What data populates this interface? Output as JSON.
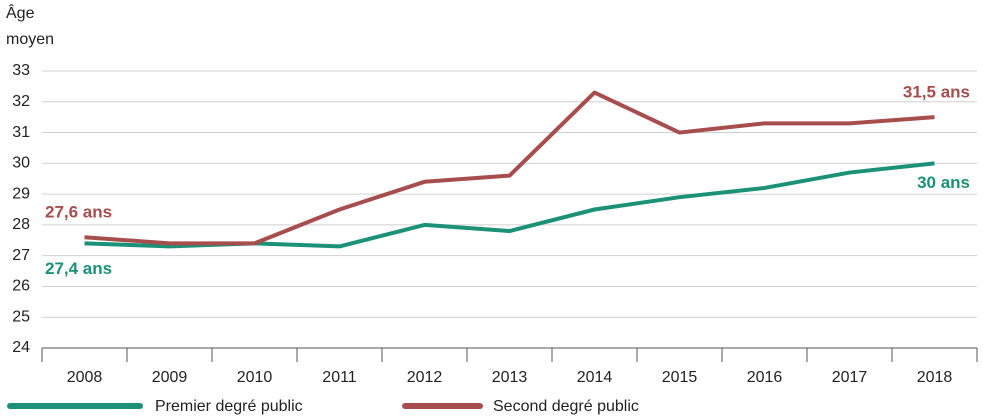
{
  "chart_data": {
    "type": "line",
    "y_label": [
      "Âge",
      "moyen"
    ],
    "categories": [
      "2008",
      "2009",
      "2010",
      "2011",
      "2012",
      "2013",
      "2014",
      "2015",
      "2016",
      "2017",
      "2018"
    ],
    "series": [
      {
        "name": "Premier degré public",
        "color": "#1b9178",
        "values": [
          27.4,
          27.3,
          27.4,
          27.3,
          28.0,
          27.8,
          28.5,
          28.9,
          29.2,
          29.7,
          30.0
        ],
        "value_labels": [
          "27,4 ans",
          null,
          null,
          null,
          null,
          null,
          null,
          null,
          null,
          null,
          "30 ans"
        ]
      },
      {
        "name": "Second degré public",
        "color": "#a84d4d",
        "values": [
          27.6,
          27.4,
          27.4,
          28.5,
          29.4,
          29.6,
          32.3,
          31.0,
          31.3,
          31.3,
          31.5
        ],
        "value_labels": [
          "27,6 ans",
          null,
          null,
          null,
          null,
          null,
          null,
          null,
          null,
          null,
          "31,5 ans"
        ]
      }
    ],
    "ylim": [
      24,
      33
    ],
    "yticks": [
      24,
      25,
      26,
      27,
      28,
      29,
      30,
      31,
      32,
      33
    ],
    "grid": true
  }
}
